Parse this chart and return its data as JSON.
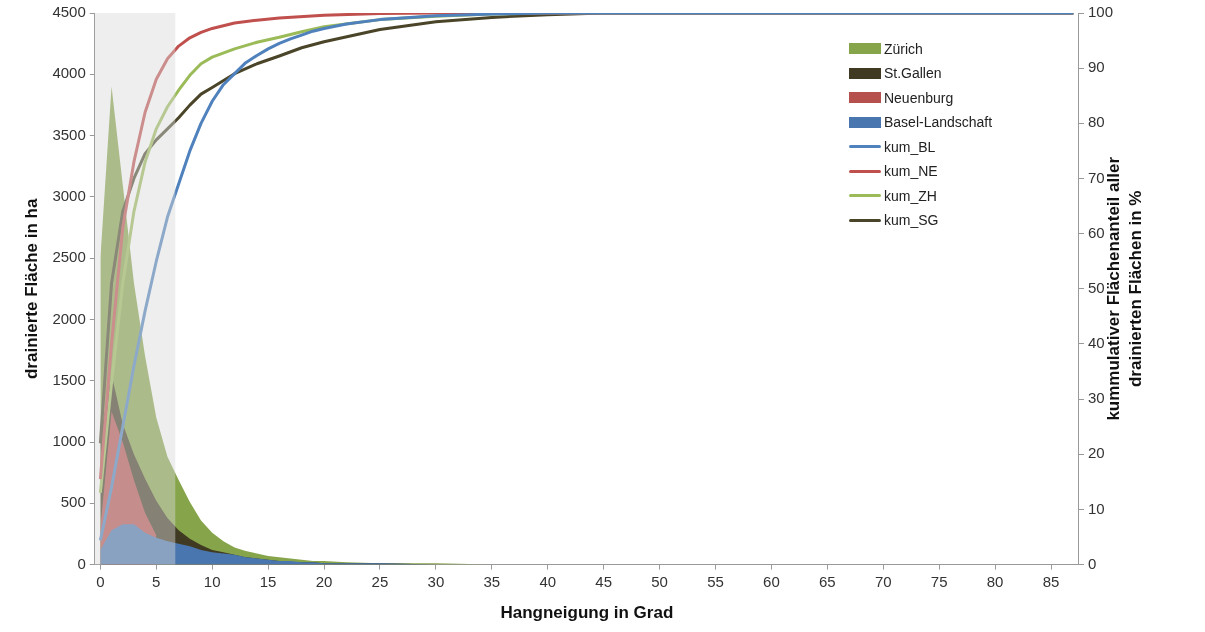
{
  "chart_data": {
    "type": "area",
    "xlabel": "Hangneigung in Grad",
    "ylabel": "drainierte Fläche in ha",
    "y2label": "kummulativer Flächenanteil aller drainierten Flächen in %",
    "xlim": [
      -0.5,
      87.5
    ],
    "xticks": [
      0,
      5,
      10,
      15,
      20,
      25,
      30,
      35,
      40,
      45,
      50,
      55,
      60,
      65,
      70,
      75,
      80,
      85
    ],
    "ylim": [
      0,
      4500
    ],
    "yticks": [
      0,
      500,
      1000,
      1500,
      2000,
      2500,
      3000,
      3500,
      4000,
      4500
    ],
    "y2lim": [
      0,
      100
    ],
    "y2ticks": [
      0,
      10,
      20,
      30,
      40,
      50,
      60,
      70,
      80,
      90,
      100
    ],
    "grid": false,
    "legend": "top right",
    "bands": [
      {
        "axis": "x",
        "from": -0.5,
        "to": 6.7,
        "color": "#d9d9d9"
      }
    ],
    "series": [
      {
        "name": "Zürich",
        "color": "#86a44a",
        "x": [
          0,
          1,
          2,
          3,
          4,
          5,
          6,
          7,
          8,
          9,
          10,
          11,
          12,
          13,
          14,
          15,
          16,
          17,
          18,
          19,
          20,
          22,
          25,
          30,
          35,
          40,
          87
        ],
        "values": [
          2500,
          3900,
          3100,
          2300,
          1700,
          1200,
          880,
          690,
          510,
          360,
          260,
          190,
          140,
          110,
          90,
          70,
          60,
          50,
          40,
          30,
          30,
          20,
          10,
          10,
          0,
          0,
          0
        ]
      },
      {
        "name": "St.Gallen",
        "color": "#403a22",
        "x": [
          0,
          1,
          2,
          3,
          4,
          5,
          6,
          7,
          8,
          9,
          10,
          11,
          12,
          13,
          14,
          15,
          16,
          17,
          18,
          19,
          20,
          22,
          25,
          30,
          35,
          40,
          87
        ],
        "values": [
          1050,
          1550,
          1150,
          900,
          700,
          520,
          380,
          280,
          210,
          160,
          120,
          100,
          80,
          60,
          50,
          40,
          30,
          20,
          20,
          20,
          10,
          10,
          10,
          0,
          0,
          0,
          0
        ]
      },
      {
        "name": "Neuenburg",
        "color": "#b5504d",
        "x": [
          0,
          1,
          2,
          3,
          4,
          5
        ],
        "values": [
          300,
          1250,
          1000,
          690,
          420,
          240
        ]
      },
      {
        "name": "Basel-Landschaft",
        "color": "#4a76b0",
        "x": [
          0,
          1,
          2,
          3,
          4,
          5,
          6,
          7,
          8,
          9,
          10,
          11,
          12,
          13,
          14,
          15,
          16,
          17,
          18,
          19,
          20,
          22,
          25,
          30,
          35,
          87
        ],
        "values": [
          120,
          280,
          330,
          330,
          260,
          220,
          190,
          170,
          150,
          120,
          100,
          90,
          80,
          60,
          50,
          40,
          30,
          30,
          20,
          20,
          10,
          10,
          10,
          0,
          0,
          0
        ]
      },
      {
        "name": "kum_BL",
        "type": "line",
        "axis": "y2",
        "color": "#4f81bd",
        "x": [
          0,
          1,
          2,
          3,
          4,
          5,
          6,
          7,
          8,
          9,
          10,
          11,
          12,
          13,
          14,
          15,
          16,
          17,
          18,
          19,
          20,
          22,
          25,
          30,
          35,
          40,
          87
        ],
        "values": [
          4.4,
          14,
          25,
          36,
          46,
          55,
          63,
          69,
          75,
          80,
          84,
          87,
          89,
          91,
          92.3,
          93.5,
          94.5,
          95.3,
          96,
          96.7,
          97.2,
          98,
          98.8,
          99.5,
          99.8,
          100,
          100
        ]
      },
      {
        "name": "kum_NE",
        "type": "line",
        "axis": "y2",
        "color": "#c0504d",
        "x": [
          0,
          1,
          2,
          3,
          4,
          5,
          6,
          7,
          8,
          9,
          10,
          12,
          14,
          16,
          20,
          25,
          30,
          87
        ],
        "values": [
          15.5,
          40,
          61,
          73,
          82,
          88,
          91.7,
          94,
          95.5,
          96.5,
          97.2,
          98.2,
          98.7,
          99.1,
          99.6,
          99.9,
          100,
          100
        ]
      },
      {
        "name": "kum_ZH",
        "type": "line",
        "axis": "y2",
        "color": "#9bbb59",
        "x": [
          0,
          1,
          2,
          3,
          4,
          5,
          6,
          7,
          8,
          9,
          10,
          12,
          14,
          16,
          18,
          20,
          25,
          30,
          35,
          40,
          87
        ],
        "values": [
          13,
          33,
          51,
          64,
          73,
          79,
          83,
          86,
          88.7,
          90.8,
          92,
          93.5,
          94.7,
          95.6,
          96.6,
          97.5,
          98.8,
          99.4,
          99.8,
          100,
          100
        ]
      },
      {
        "name": "kum_SG",
        "type": "line",
        "axis": "y2",
        "color": "#4a4528",
        "x": [
          0,
          1,
          2,
          3,
          4,
          5,
          6,
          7,
          8,
          9,
          10,
          12,
          14,
          16,
          18,
          20,
          25,
          30,
          35,
          40,
          45,
          87
        ],
        "values": [
          22,
          51,
          64,
          70,
          74.5,
          77,
          79,
          81,
          83.3,
          85.3,
          86.5,
          89,
          90.8,
          92.2,
          93.7,
          94.8,
          97,
          98.4,
          99.2,
          99.7,
          100,
          100
        ]
      }
    ]
  }
}
